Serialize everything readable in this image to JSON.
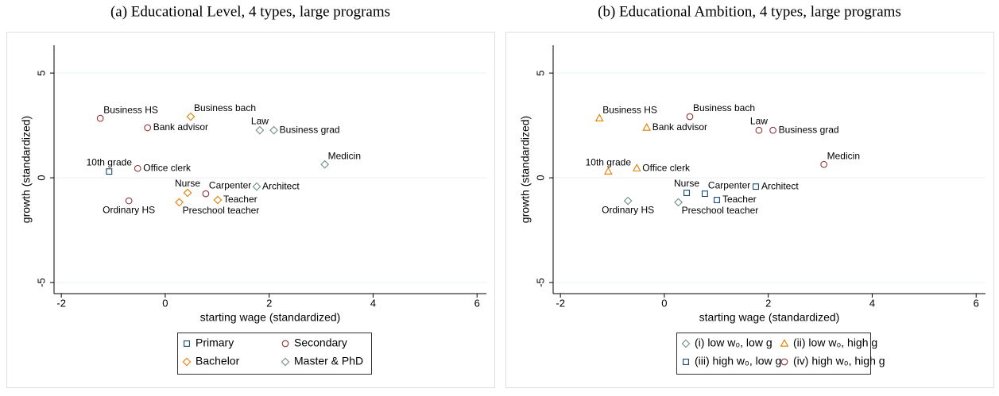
{
  "chart_data": [
    {
      "type": "scatter",
      "title": "(a) Educational Level, 4 types, large programs",
      "xlabel": "starting wage (standardized)",
      "ylabel": "growth (standardized)",
      "xlim": [
        -2.14,
        6.18
      ],
      "ylim": [
        -5.53,
        6.33
      ],
      "xticks": [
        -2,
        0,
        2,
        4,
        6
      ],
      "yticks": [
        -5,
        0,
        5
      ],
      "grid": true,
      "legend": "bottom",
      "series": [
        {
          "name": "Primary",
          "color": "#1a476f",
          "marker": "square",
          "labels": [
            "10th grade"
          ],
          "x": [
            -1.08
          ],
          "y": [
            0.3
          ]
        },
        {
          "name": "Secondary",
          "color": "#90353b",
          "marker": "circle",
          "labels": [
            "Business HS",
            "Bank advisor",
            "Office clerk",
            "Carpenter",
            "Ordinary HS"
          ],
          "x": [
            -1.25,
            -0.34,
            -0.53,
            0.78,
            -0.7
          ],
          "y": [
            2.84,
            2.39,
            0.45,
            -0.76,
            -1.1
          ]
        },
        {
          "name": "Bachelor",
          "color": "#e37e00",
          "marker": "diamond",
          "labels": [
            "Business bach",
            "Nurse",
            "Teacher",
            "Preschool teacher"
          ],
          "x": [
            0.49,
            0.43,
            1.01,
            0.27
          ],
          "y": [
            2.92,
            -0.72,
            -1.06,
            -1.17
          ]
        },
        {
          "name": "Master & PhD",
          "color": "#6e8e84",
          "marker": "diamond",
          "labels": [
            "Law",
            "Business grad",
            "Medicin",
            "Architect"
          ],
          "x": [
            1.82,
            2.09,
            3.07,
            1.76
          ],
          "y": [
            2.27,
            2.27,
            0.64,
            -0.42
          ]
        }
      ]
    },
    {
      "type": "scatter",
      "title": "(b) Educational Ambition, 4 types, large programs",
      "xlabel": "starting wage (standardized)",
      "ylabel": "growth (standardized)",
      "xlim": [
        -2.14,
        6.18
      ],
      "ylim": [
        -5.53,
        6.33
      ],
      "xticks": [
        -2,
        0,
        2,
        4,
        6
      ],
      "yticks": [
        -5,
        0,
        5
      ],
      "grid": true,
      "legend": "bottom",
      "series": [
        {
          "name": "(i) low w₀, low g",
          "color": "#6e8e84",
          "marker": "diamond",
          "labels": [
            "Preschool teacher",
            "Ordinary HS"
          ],
          "x": [
            0.27,
            -0.7
          ],
          "y": [
            -1.17,
            -1.1
          ]
        },
        {
          "name": "(ii) low w₀, high g",
          "color": "#e37e00",
          "marker": "triangle",
          "labels": [
            "Business HS",
            "Bank advisor",
            "10th grade",
            "Office clerk"
          ],
          "x": [
            -1.25,
            -0.34,
            -1.08,
            -0.53
          ],
          "y": [
            2.84,
            2.39,
            0.3,
            0.45
          ]
        },
        {
          "name": "(iii) high w₀, low g",
          "color": "#1a476f",
          "marker": "square",
          "labels": [
            "Nurse",
            "Carpenter",
            "Architect",
            "Teacher"
          ],
          "x": [
            0.43,
            0.78,
            1.76,
            1.01
          ],
          "y": [
            -0.72,
            -0.76,
            -0.42,
            -1.06
          ]
        },
        {
          "name": "(iv) high w₀, high g",
          "color": "#90353b",
          "marker": "circle",
          "labels": [
            "Business bach",
            "Law",
            "Business grad",
            "Medicin"
          ],
          "x": [
            0.49,
            1.82,
            2.09,
            3.07
          ],
          "y": [
            2.92,
            2.27,
            2.27,
            0.64
          ]
        }
      ]
    }
  ]
}
